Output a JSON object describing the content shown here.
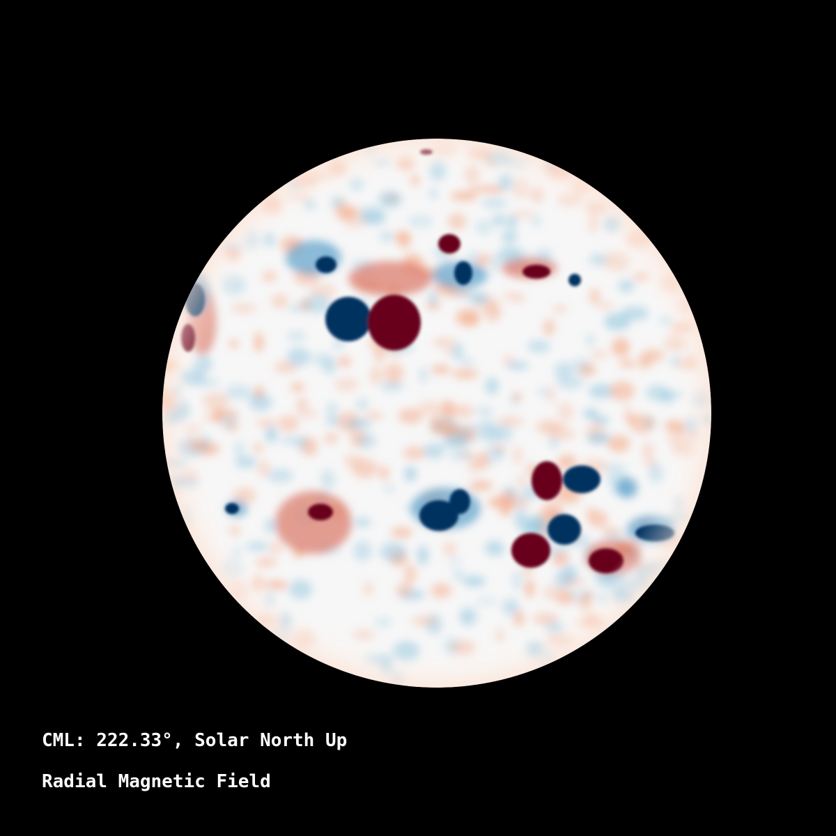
{
  "annotations": {
    "cml_line": "CML: 222.33°, Solar North Up",
    "quantity": "Radial Magnetic Field"
  },
  "colormap": {
    "positive": "#67001f",
    "negative": "#053061",
    "neutral": "#f7f7f7"
  },
  "background": "#000000"
}
